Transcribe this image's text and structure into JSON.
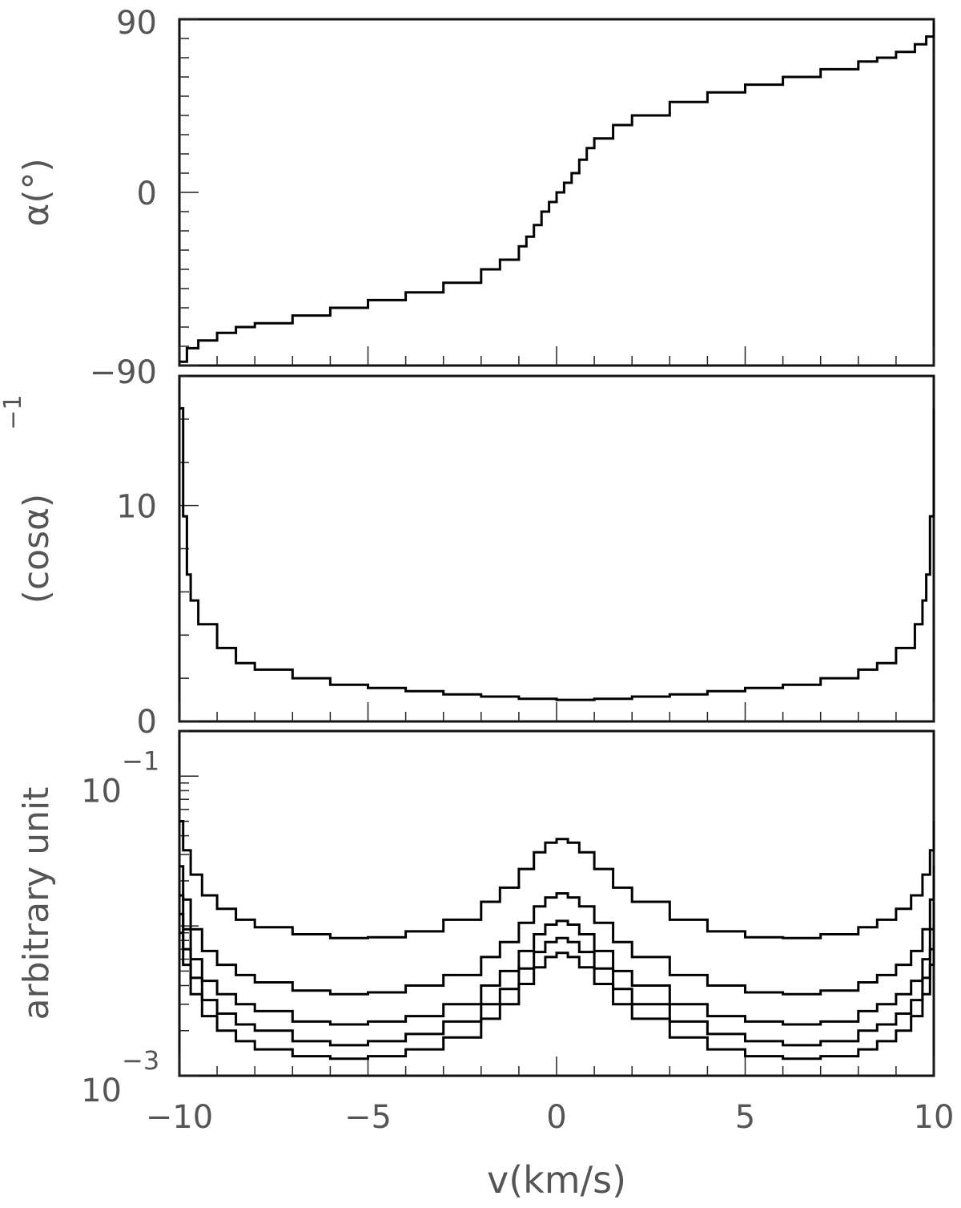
{
  "chart_data": [
    {
      "type": "line",
      "panel": "top",
      "ylabel": "α(°)",
      "xlim": [
        -10,
        10
      ],
      "ylim": [
        -90,
        90
      ],
      "yticks": [
        {
          "value": 90,
          "label": "90"
        },
        {
          "value": 0,
          "label": "0"
        },
        {
          "value": -90,
          "label": "−90"
        }
      ],
      "x": [
        -10,
        -9.8,
        -9.5,
        -9,
        -8.5,
        -8,
        -7,
        -6,
        -5,
        -4,
        -3,
        -2,
        -1.5,
        -1,
        -0.8,
        -0.6,
        -0.4,
        -0.2,
        0,
        0.2,
        0.4,
        0.6,
        0.8,
        1,
        1.5,
        2,
        3,
        4,
        5,
        6,
        7,
        8,
        8.5,
        9,
        9.5,
        9.8,
        10
      ],
      "series": [
        {
          "values": [
            -88,
            -81,
            -77,
            -73,
            -70,
            -68,
            -64,
            -60,
            -56,
            -52,
            -47,
            -40,
            -35,
            -28,
            -23,
            -17,
            -10,
            -5,
            0,
            5,
            10,
            17,
            23,
            28,
            35,
            40,
            47,
            52,
            56,
            60,
            64,
            68,
            70,
            73,
            77,
            81,
            88
          ]
        }
      ]
    },
    {
      "type": "line",
      "panel": "middle",
      "ylabel": "(cosα)",
      "ylabel_superscript": "−1",
      "xlim": [
        -10,
        10
      ],
      "ylim": [
        0,
        16
      ],
      "yticks": [
        {
          "value": 10,
          "label": "10"
        },
        {
          "value": 0,
          "label": "0"
        }
      ],
      "x": [
        -10,
        -9.9,
        -9.8,
        -9.7,
        -9.5,
        -9,
        -8.5,
        -8,
        -7,
        -6,
        -5,
        -4,
        -3,
        -2,
        -1,
        0,
        1,
        2,
        3,
        4,
        5,
        6,
        7,
        8,
        8.5,
        9,
        9.5,
        9.7,
        9.8,
        9.9,
        10
      ],
      "series": [
        {
          "values": [
            14.5,
            9.5,
            6.8,
            5.6,
            4.5,
            3.4,
            2.7,
            2.4,
            2.0,
            1.7,
            1.55,
            1.4,
            1.25,
            1.15,
            1.05,
            1.0,
            1.05,
            1.15,
            1.25,
            1.4,
            1.55,
            1.7,
            2.0,
            2.4,
            2.7,
            3.4,
            4.5,
            5.6,
            6.8,
            9.5,
            14.5
          ]
        }
      ]
    },
    {
      "type": "line",
      "panel": "bottom",
      "ylabel": "arbitrary unit",
      "yscale": "log",
      "xlabel": "v(km/s)",
      "xlim": [
        -10,
        10
      ],
      "ylim": [
        0.001,
        0.2
      ],
      "xticks": [
        {
          "value": -10,
          "label": "−10"
        },
        {
          "value": -5,
          "label": "−5"
        },
        {
          "value": 0,
          "label": "0"
        },
        {
          "value": 5,
          "label": "5"
        },
        {
          "value": 10,
          "label": "10"
        }
      ],
      "yticks": [
        {
          "value": 0.1,
          "base": "10",
          "exponent": "−1"
        },
        {
          "value": 0.001,
          "base": "10",
          "exponent": "−3"
        }
      ],
      "x": [
        -10,
        -9.9,
        -9.7,
        -9.4,
        -9,
        -8.5,
        -8,
        -7,
        -6,
        -5,
        -4,
        -3,
        -2,
        -1.5,
        -1,
        -0.6,
        -0.3,
        0,
        0.3,
        0.6,
        1,
        1.5,
        2,
        3,
        4,
        5,
        6,
        7,
        8,
        8.5,
        9,
        9.4,
        9.7,
        9.9,
        10
      ],
      "series": [
        {
          "values": [
            0.05,
            0.032,
            0.022,
            0.016,
            0.013,
            0.011,
            0.0098,
            0.0088,
            0.0083,
            0.0084,
            0.0092,
            0.011,
            0.0145,
            0.018,
            0.024,
            0.031,
            0.036,
            0.038,
            0.036,
            0.031,
            0.024,
            0.018,
            0.0145,
            0.011,
            0.0092,
            0.0084,
            0.0083,
            0.0088,
            0.0098,
            0.011,
            0.013,
            0.016,
            0.022,
            0.032,
            0.05
          ]
        },
        {
          "values": [
            0.025,
            0.015,
            0.0095,
            0.0068,
            0.0055,
            0.0047,
            0.0042,
            0.0037,
            0.0035,
            0.0036,
            0.004,
            0.0047,
            0.0062,
            0.0078,
            0.0105,
            0.0135,
            0.0155,
            0.0165,
            0.0155,
            0.0135,
            0.0105,
            0.0078,
            0.0062,
            0.0047,
            0.004,
            0.0036,
            0.0035,
            0.0037,
            0.0042,
            0.0047,
            0.0055,
            0.0068,
            0.0095,
            0.015,
            0.025
          ]
        },
        {
          "values": [
            0.016,
            0.0095,
            0.006,
            0.0043,
            0.0035,
            0.003,
            0.0027,
            0.0023,
            0.0022,
            0.0023,
            0.0025,
            0.003,
            0.004,
            0.005,
            0.0068,
            0.0088,
            0.0102,
            0.0108,
            0.0102,
            0.0088,
            0.0068,
            0.005,
            0.004,
            0.003,
            0.0025,
            0.0023,
            0.0022,
            0.0023,
            0.0027,
            0.003,
            0.0035,
            0.0043,
            0.006,
            0.0095,
            0.016
          ]
        },
        {
          "values": [
            0.012,
            0.007,
            0.0045,
            0.0032,
            0.0026,
            0.0022,
            0.002,
            0.0017,
            0.0016,
            0.0017,
            0.0019,
            0.0023,
            0.003,
            0.0038,
            0.0052,
            0.0067,
            0.0078,
            0.0083,
            0.0078,
            0.0067,
            0.0052,
            0.0038,
            0.003,
            0.0023,
            0.0019,
            0.0017,
            0.0016,
            0.0017,
            0.002,
            0.0022,
            0.0026,
            0.0032,
            0.0045,
            0.007,
            0.012
          ]
        },
        {
          "values": [
            0.009,
            0.0055,
            0.0035,
            0.0025,
            0.002,
            0.0017,
            0.0015,
            0.00135,
            0.0013,
            0.00135,
            0.0015,
            0.0018,
            0.0024,
            0.003,
            0.0041,
            0.0053,
            0.0062,
            0.0066,
            0.0062,
            0.0053,
            0.0041,
            0.003,
            0.0024,
            0.0018,
            0.0015,
            0.00135,
            0.0013,
            0.00135,
            0.0015,
            0.0017,
            0.002,
            0.0025,
            0.0035,
            0.0055,
            0.009
          ]
        }
      ]
    }
  ]
}
